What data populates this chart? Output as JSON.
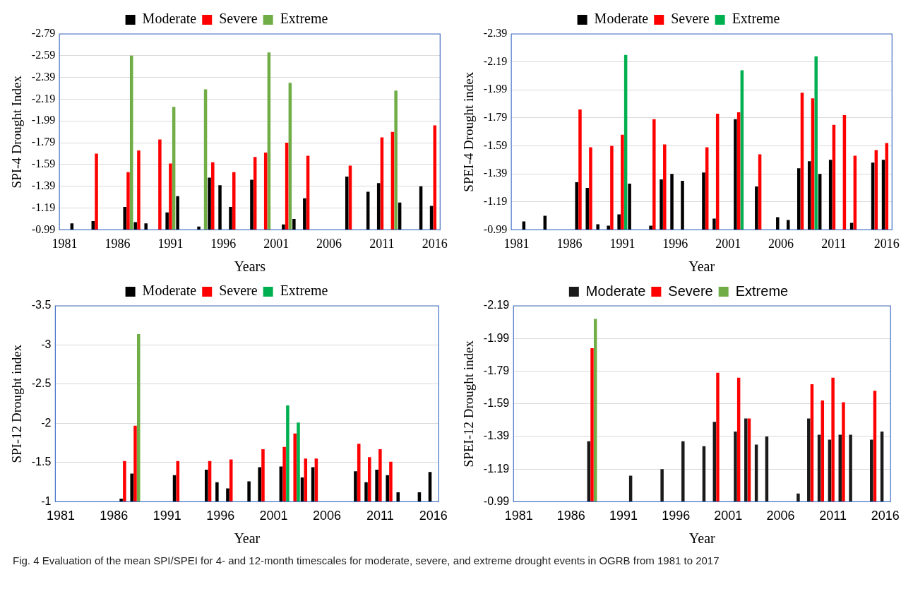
{
  "chart_data": [
    {
      "type": "bar",
      "ylabel": "SPI-4 Drought Index",
      "xlabel": "Years",
      "legend": "top",
      "grid": "y",
      "categories": [
        "1981",
        null,
        null,
        null,
        null,
        "1986",
        null,
        null,
        null,
        null,
        "1991",
        null,
        null,
        null,
        null,
        "1996",
        null,
        null,
        null,
        null,
        "2001",
        null,
        null,
        null,
        null,
        "2006",
        null,
        null,
        null,
        null,
        "2011",
        null,
        null,
        null,
        null,
        "2016"
      ],
      "ylim": [
        -0.99,
        -2.79
      ],
      "yticks": [
        -0.99,
        -1.19,
        -1.39,
        -1.59,
        -1.79,
        -1.99,
        -2.19,
        -2.39,
        -2.59,
        -2.79
      ],
      "series": [
        {
          "name": "Moderate",
          "color": "#000000",
          "values": [
            null,
            -1.05,
            null,
            -1.07,
            null,
            null,
            -1.2,
            -1.06,
            -1.05,
            null,
            -1.15,
            -1.3,
            null,
            -1.02,
            -1.47,
            -1.4,
            -1.2,
            null,
            -1.45,
            null,
            null,
            -1.04,
            -1.09,
            -1.28,
            null,
            null,
            null,
            -1.48,
            null,
            -1.34,
            -1.42,
            null,
            -1.24,
            null,
            -1.39,
            -1.21
          ]
        },
        {
          "name": "Severe",
          "color": "#ff0000",
          "values": [
            null,
            null,
            null,
            -1.69,
            null,
            null,
            -1.52,
            -1.72,
            null,
            -1.82,
            -1.6,
            null,
            null,
            null,
            -1.61,
            null,
            -1.52,
            null,
            -1.66,
            -1.7,
            null,
            -1.79,
            null,
            -1.67,
            null,
            null,
            null,
            -1.58,
            null,
            null,
            -1.84,
            -1.89,
            null,
            null,
            null,
            -1.95
          ]
        },
        {
          "name": "Extreme",
          "color": "#70ad47",
          "values": [
            null,
            null,
            null,
            null,
            null,
            null,
            -2.59,
            null,
            null,
            null,
            -2.12,
            null,
            null,
            -2.28,
            null,
            null,
            null,
            null,
            null,
            -2.62,
            null,
            -2.34,
            null,
            null,
            null,
            null,
            null,
            null,
            null,
            null,
            null,
            -2.27,
            null,
            null,
            null,
            null
          ]
        }
      ]
    },
    {
      "type": "bar",
      "ylabel": "SPEI-4 Drought index",
      "xlabel": "Year",
      "legend": "top",
      "grid": "y",
      "categories": [
        "1981",
        null,
        null,
        null,
        null,
        "1986",
        null,
        null,
        null,
        null,
        "1991",
        null,
        null,
        null,
        null,
        "1996",
        null,
        null,
        null,
        null,
        "2001",
        null,
        null,
        null,
        null,
        "2006",
        null,
        null,
        null,
        null,
        "2011",
        null,
        null,
        null,
        null,
        "2016"
      ],
      "ylim": [
        -0.99,
        -2.39
      ],
      "yticks": [
        -0.99,
        -1.19,
        -1.39,
        -1.59,
        -1.79,
        -1.99,
        -2.19,
        -2.39
      ],
      "series": [
        {
          "name": "Moderate",
          "color": "#000000",
          "values": [
            null,
            -1.05,
            null,
            -1.09,
            null,
            null,
            -1.33,
            -1.29,
            -1.03,
            -1.02,
            -1.1,
            -1.32,
            null,
            -1.02,
            -1.35,
            -1.39,
            -1.34,
            null,
            -1.4,
            -1.07,
            null,
            -1.78,
            null,
            -1.3,
            null,
            -1.08,
            -1.06,
            -1.43,
            -1.48,
            -1.39,
            -1.49,
            null,
            -1.04,
            null,
            -1.47,
            -1.49
          ]
        },
        {
          "name": "Severe",
          "color": "#ff0000",
          "values": [
            null,
            null,
            null,
            null,
            null,
            null,
            -1.85,
            -1.58,
            null,
            -1.59,
            -1.67,
            null,
            null,
            -1.78,
            -1.6,
            null,
            null,
            null,
            -1.58,
            -1.82,
            null,
            -1.83,
            null,
            -1.53,
            null,
            null,
            null,
            -1.97,
            -1.93,
            null,
            -1.74,
            -1.81,
            -1.52,
            null,
            -1.56,
            -1.61
          ]
        },
        {
          "name": "Extreme",
          "color": "#00b050",
          "values": [
            null,
            null,
            null,
            null,
            null,
            null,
            null,
            null,
            null,
            null,
            -2.24,
            null,
            null,
            null,
            null,
            null,
            null,
            null,
            null,
            null,
            null,
            -2.13,
            null,
            null,
            null,
            null,
            null,
            null,
            -2.23,
            null,
            null,
            null,
            null,
            null,
            null,
            null
          ]
        }
      ]
    },
    {
      "type": "bar",
      "ylabel": "SPI-12 Drought index",
      "xlabel": "Year",
      "legend": "top",
      "grid": "y",
      "categories": [
        "1981",
        null,
        null,
        null,
        null,
        "1986",
        null,
        null,
        null,
        null,
        "1991",
        null,
        null,
        null,
        null,
        "1996",
        null,
        null,
        null,
        null,
        "2001",
        null,
        null,
        null,
        null,
        "2006",
        null,
        null,
        null,
        null,
        "2011",
        null,
        null,
        null,
        null,
        "2016"
      ],
      "ylim": [
        -1,
        -3.5
      ],
      "yticks": [
        -1,
        -1.5,
        -2,
        -2.5,
        -3,
        -3.5
      ],
      "series": [
        {
          "name": "Moderate",
          "color": "#000000",
          "values": [
            null,
            null,
            null,
            null,
            null,
            null,
            -1.04,
            -1.36,
            null,
            null,
            null,
            -1.34,
            null,
            null,
            -1.41,
            -1.25,
            -1.17,
            null,
            -1.26,
            -1.44,
            null,
            -1.45,
            null,
            -1.31,
            -1.44,
            null,
            null,
            null,
            -1.39,
            -1.25,
            -1.41,
            -1.34,
            -1.12,
            null,
            -1.12,
            -1.38
          ]
        },
        {
          "name": "Severe",
          "color": "#ff0000",
          "values": [
            null,
            null,
            null,
            null,
            null,
            null,
            -1.52,
            -1.97,
            null,
            null,
            null,
            -1.52,
            null,
            null,
            -1.52,
            null,
            -1.54,
            null,
            null,
            -1.67,
            null,
            -1.7,
            -1.87,
            -1.55,
            -1.55,
            null,
            null,
            null,
            -1.74,
            -1.57,
            -1.67,
            -1.51,
            null,
            null,
            null,
            null
          ]
        },
        {
          "name": "Extreme",
          "color": "#00b050",
          "values": [
            null,
            null,
            null,
            null,
            null,
            null,
            null,
            -3.14,
            null,
            null,
            null,
            null,
            null,
            null,
            null,
            null,
            null,
            null,
            null,
            null,
            null,
            -2.23,
            -2.01,
            null,
            null,
            null,
            null,
            null,
            null,
            null,
            null,
            null,
            null,
            null,
            null,
            null
          ],
          "colors": [
            null,
            null,
            null,
            null,
            null,
            null,
            null,
            "#70ad47",
            null,
            null,
            null,
            null,
            null,
            null,
            null,
            null,
            null,
            null,
            null,
            null,
            null,
            "#00b050",
            "#00b050",
            null,
            null,
            null,
            null,
            null,
            null,
            null,
            null,
            null,
            null,
            null,
            null,
            null
          ]
        }
      ]
    },
    {
      "type": "bar",
      "ylabel": "SPEI-12 Drought index",
      "xlabel": "Year",
      "legend": "top",
      "grid": "y",
      "categories": [
        "1981",
        null,
        null,
        null,
        null,
        "1986",
        null,
        null,
        null,
        null,
        "1991",
        null,
        null,
        null,
        null,
        "1996",
        null,
        null,
        null,
        null,
        "2001",
        null,
        null,
        null,
        null,
        "2006",
        null,
        null,
        null,
        null,
        "2011",
        null,
        null,
        null,
        null,
        "2016"
      ],
      "ylim": [
        -0.99,
        -2.19
      ],
      "yticks": [
        -0.99,
        -1.19,
        -1.39,
        -1.59,
        -1.79,
        -1.99,
        -2.19
      ],
      "annotations": [
        "Fig. 4  Evaluation of the mean SPI/SPEI for 4- and 12-month timescales for moderate, severe, and extreme drought events in OGRB from 1981 to 2017"
      ],
      "series": [
        {
          "name": "Moderate",
          "color": "#1a1a1a",
          "values": [
            null,
            null,
            null,
            null,
            null,
            null,
            null,
            -1.36,
            null,
            null,
            null,
            -1.15,
            null,
            null,
            -1.19,
            null,
            -1.36,
            null,
            -1.33,
            -1.48,
            null,
            -1.42,
            -1.5,
            -1.34,
            -1.39,
            null,
            null,
            -1.04,
            -1.5,
            -1.4,
            -1.37,
            -1.4,
            -1.4,
            null,
            -1.37,
            -1.42
          ]
        },
        {
          "name": "Severe",
          "color": "#ff0000",
          "values": [
            null,
            null,
            null,
            null,
            null,
            null,
            null,
            -1.93,
            null,
            null,
            null,
            null,
            null,
            null,
            null,
            null,
            null,
            null,
            null,
            -1.78,
            null,
            -1.75,
            -1.5,
            null,
            null,
            null,
            null,
            null,
            -1.71,
            -1.61,
            -1.75,
            -1.6,
            null,
            null,
            -1.67,
            null
          ]
        },
        {
          "name": "Extreme",
          "color": "#70ad47",
          "values": [
            null,
            null,
            null,
            null,
            null,
            null,
            null,
            -2.11,
            null,
            null,
            null,
            null,
            null,
            null,
            null,
            null,
            null,
            null,
            null,
            null,
            null,
            null,
            null,
            null,
            null,
            null,
            null,
            null,
            null,
            null,
            null,
            null,
            null,
            null,
            null,
            null
          ]
        }
      ]
    }
  ]
}
